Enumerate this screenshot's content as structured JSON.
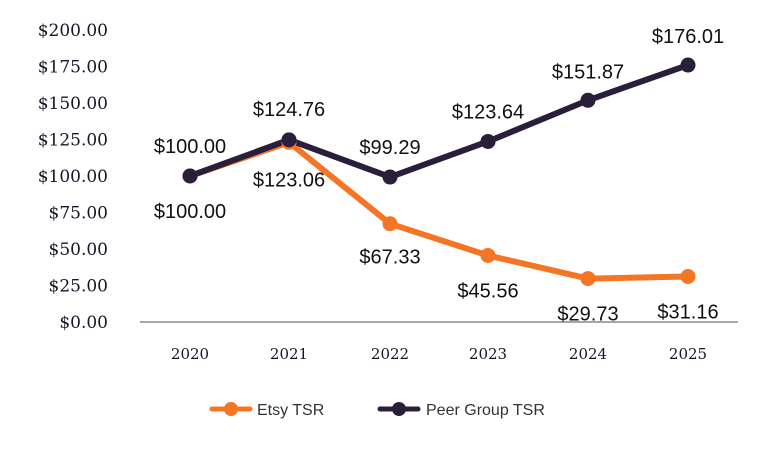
{
  "chart_data": {
    "type": "line",
    "title": "",
    "xlabel": "",
    "ylabel": "",
    "x": [
      "2020",
      "2021",
      "2022",
      "2023",
      "2024",
      "2025"
    ],
    "ylim": [
      0,
      200
    ],
    "yticks": [
      0,
      25,
      50,
      75,
      100,
      125,
      150,
      175,
      200
    ],
    "ytick_labels": [
      "$0.00",
      "$25.00",
      "$50.00",
      "$75.00",
      "$100.00",
      "$125.00",
      "$150.00",
      "$175.00",
      "$200.00"
    ],
    "grid": false,
    "legend_position": "bottom",
    "series": [
      {
        "name": "Etsy TSR",
        "color": "#f47625",
        "values": [
          100.0,
          123.06,
          67.33,
          45.56,
          29.73,
          31.16
        ],
        "labels": [
          "$100.00",
          "$123.06",
          "$67.33",
          "$45.56",
          "$29.73",
          "$31.16"
        ]
      },
      {
        "name": "Peer Group TSR",
        "color": "#2a1e3a",
        "values": [
          100.0,
          124.76,
          99.29,
          123.64,
          151.87,
          176.01
        ],
        "labels": [
          "$100.00",
          "$124.76",
          "$99.29",
          "$123.64",
          "$151.87",
          "$176.01"
        ]
      }
    ]
  }
}
